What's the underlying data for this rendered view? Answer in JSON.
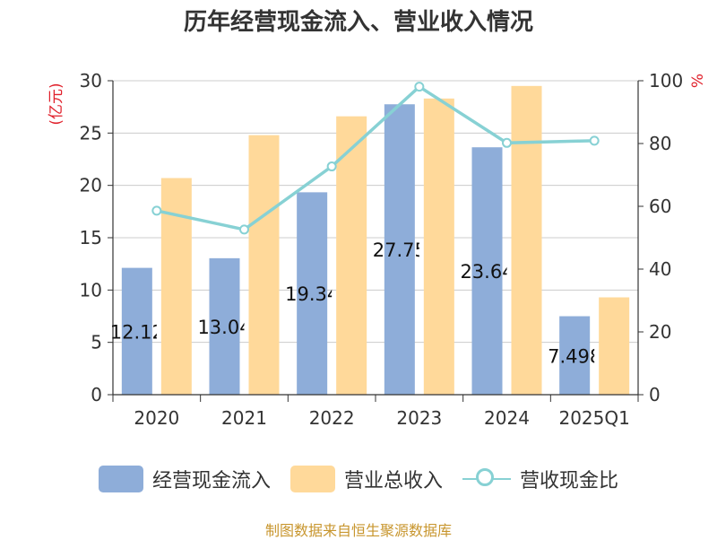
{
  "chart_data": {
    "type": "bar",
    "title": "历年经营现金流入、营业收入情况",
    "categories": [
      "2020",
      "2021",
      "2022",
      "2023",
      "2024",
      "2025Q1"
    ],
    "y_left": {
      "label": "(亿元)",
      "ylim": [
        0,
        30
      ],
      "ticks": [
        0,
        5,
        10,
        15,
        20,
        25,
        30
      ]
    },
    "y_right": {
      "label": "%",
      "ylim": [
        0,
        100
      ],
      "ticks": [
        0,
        20,
        40,
        60,
        80,
        100
      ]
    },
    "series": [
      {
        "name": "经营现金流入",
        "kind": "bar",
        "axis": "left",
        "color": "#8eadd9",
        "values": [
          12.12,
          13.04,
          19.34,
          27.75,
          23.64,
          7.498
        ],
        "labels": [
          "12.12",
          "13.04",
          "19.34",
          "27.75",
          "23.64",
          "7.498"
        ]
      },
      {
        "name": "营业总收入",
        "kind": "bar",
        "axis": "left",
        "color": "#ffd99a",
        "values": [
          20.7,
          24.8,
          26.6,
          28.3,
          29.5,
          9.3
        ]
      },
      {
        "name": "营收现金比",
        "kind": "line",
        "axis": "right",
        "color": "#87d1d4",
        "values": [
          58.6,
          52.6,
          72.7,
          98.1,
          80.2,
          80.9
        ]
      }
    ],
    "grid": true,
    "legend_position": "bottom"
  },
  "source_text": "制图数据来自恒生聚源数据库",
  "colors": {
    "title": "#333333",
    "axis_label": "#e0202b",
    "source": "#c8962e"
  }
}
